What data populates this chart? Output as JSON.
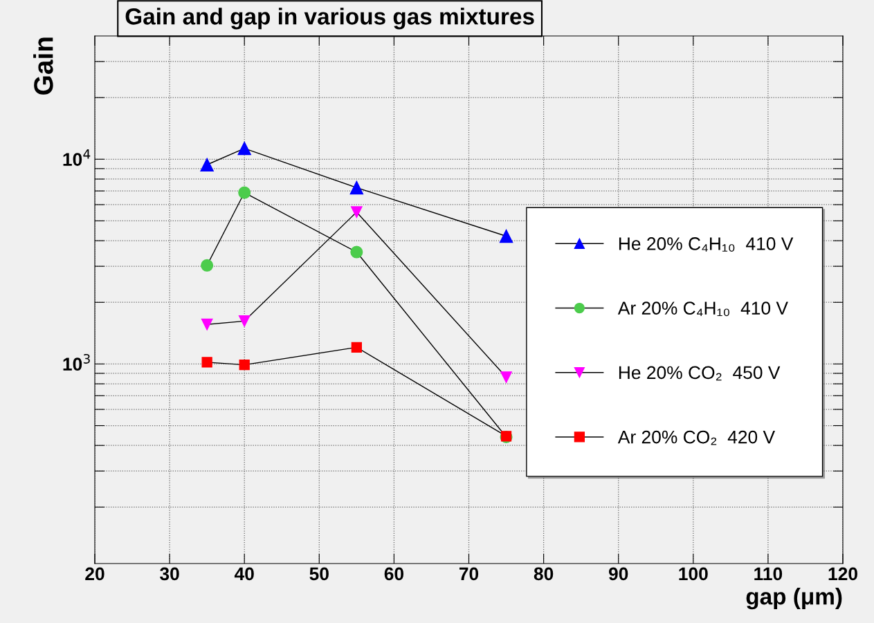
{
  "chart_data": {
    "type": "line",
    "title": "Gain and gap in various gas mixtures",
    "xlabel": "gap (μm)",
    "ylabel": "Gain",
    "x": [
      35,
      40,
      55,
      75
    ],
    "series": [
      {
        "name": "He 20% C₄H₁₀  410 V",
        "color": "#0000ff",
        "marker": "triangle",
        "values": [
          9400,
          11300,
          7260,
          4210
        ]
      },
      {
        "name": "Ar 20% C₄H₁₀  410 V",
        "color": "#4ccc4c",
        "marker": "circle",
        "values": [
          3030,
          6870,
          3520,
          440
        ]
      },
      {
        "name": "He 20% CO₂  450 V",
        "color": "#ff00ff",
        "marker": "triangle_down",
        "values": [
          1560,
          1620,
          5520,
          862
        ]
      },
      {
        "name": "Ar 20% CO₂  420 V",
        "color": "#ff0000",
        "marker": "square",
        "values": [
          1020,
          990,
          1206,
          444
        ]
      }
    ],
    "log": "y",
    "xlim": [
      20,
      120
    ],
    "ylim": [
      106,
      40000
    ],
    "xticks": [
      20,
      30,
      40,
      50,
      60,
      70,
      80,
      90,
      100,
      110,
      120
    ],
    "yticks": [
      {
        "value": 200,
        "label": null
      },
      {
        "value": 300,
        "label": null
      },
      {
        "value": 400,
        "label": null
      },
      {
        "value": 500,
        "label": null
      },
      {
        "value": 600,
        "label": null
      },
      {
        "value": 700,
        "label": null
      },
      {
        "value": 800,
        "label": null
      },
      {
        "value": 900,
        "label": null
      },
      {
        "value": 1000,
        "label": "10$^{3}$"
      },
      {
        "value": 2000,
        "label": null
      },
      {
        "value": 3000,
        "label": null
      },
      {
        "value": 4000,
        "label": null
      },
      {
        "value": 5000,
        "label": null
      },
      {
        "value": 6000,
        "label": null
      },
      {
        "value": 7000,
        "label": null
      },
      {
        "value": 8000,
        "label": null
      },
      {
        "value": 9000,
        "label": null
      },
      {
        "value": 10000,
        "label": "10$^{4}$"
      },
      {
        "value": 20000,
        "label": null
      },
      {
        "value": 30000,
        "label": null
      }
    ],
    "grid": true,
    "legend": "right",
    "line_style": "solid"
  }
}
